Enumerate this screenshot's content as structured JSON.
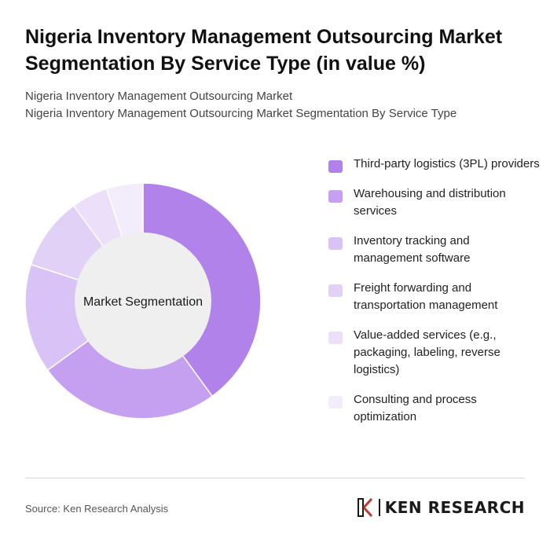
{
  "title": "Nigeria Inventory Management Outsourcing Market Segmentation By Service Type (in value %)",
  "subtitle_lines": [
    "Nigeria Inventory Management Outsourcing Market",
    "Nigeria Inventory Management Outsourcing Market Segmentation By Service Type"
  ],
  "chart_data": {
    "type": "pie",
    "variant": "donut",
    "center_label": "Market Segmentation",
    "categories": [
      "Third-party logistics (3PL) providers",
      "Warehousing and distribution services",
      "Inventory tracking and management software",
      "Freight forwarding and transportation management",
      "Value-added services (e.g., packaging, labeling, reverse logistics)",
      "Consulting and process optimization"
    ],
    "values": [
      40,
      25,
      15,
      10,
      5,
      5
    ],
    "colors": [
      "#b182ea",
      "#c59ff0",
      "#d9c2f5",
      "#e2d1f7",
      "#ebdff9",
      "#f2ecfb"
    ],
    "legend_position": "right"
  },
  "source": "Source: Ken Research Analysis",
  "logo": {
    "text": "KEN RESEARCH"
  }
}
